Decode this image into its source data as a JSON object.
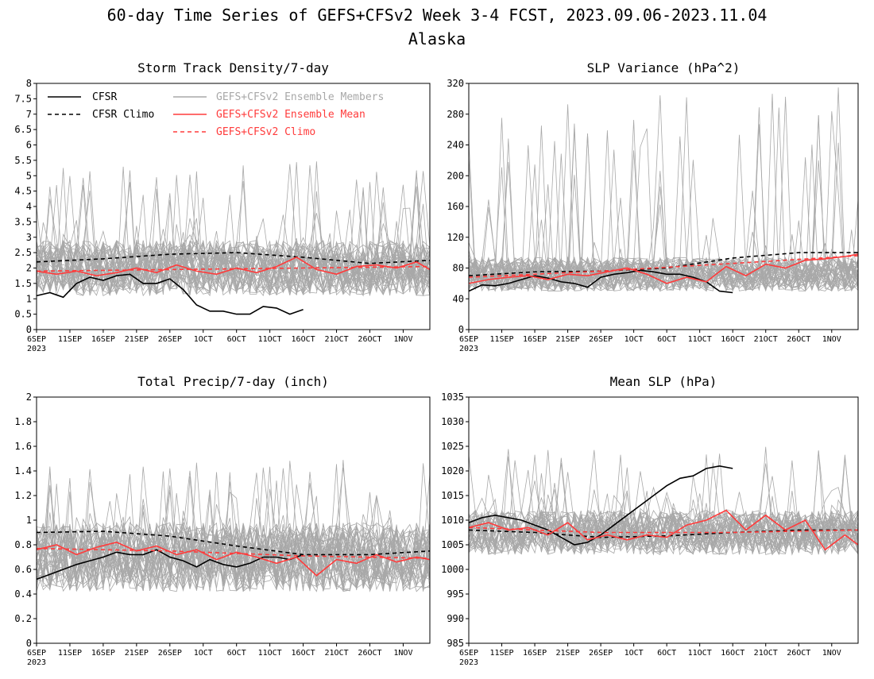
{
  "header": {
    "title": "60-day Time Series of GEFS+CFSv2 Week 3-4 FCST, 2023.09.06-2023.11.04",
    "subtitle": "Alaska"
  },
  "colors": {
    "cfsr": "#000000",
    "ensemble_member": "#a8a8a8",
    "ensemble_mean": "#ff3b3b",
    "axis": "#000000"
  },
  "legend": {
    "items": [
      {
        "label": "CFSR",
        "style": "solid",
        "color": "#000000"
      },
      {
        "label": "CFSR Climo",
        "style": "dashed",
        "color": "#000000"
      },
      {
        "label": "GEFS+CFSv2 Ensemble Members",
        "style": "solid",
        "color": "#a8a8a8"
      },
      {
        "label": "GEFS+CFSv2 Ensemble Mean",
        "style": "solid",
        "color": "#ff3b3b"
      },
      {
        "label": "GEFS+CFSv2 Climo",
        "style": "dashed",
        "color": "#ff3b3b"
      }
    ]
  },
  "x_axis": {
    "tick_labels": [
      "6SEP",
      "11SEP",
      "16SEP",
      "21SEP",
      "26SEP",
      "1OCT",
      "6OCT",
      "11OCT",
      "16OCT",
      "21OCT",
      "26OCT",
      "1NOV"
    ],
    "year_label": "2023"
  },
  "chart_data": [
    {
      "type": "line",
      "title": "Storm Track Density/7-day",
      "ylim": [
        0,
        8
      ],
      "yticks": [
        "0",
        "0.5",
        "1",
        "1.5",
        "2",
        "2.5",
        "3",
        "3.5",
        "4",
        "4.5",
        "5",
        "5.5",
        "6",
        "6.5",
        "7",
        "7.5",
        "8"
      ],
      "ensemble_members": {
        "count": 40,
        "center": 2.0,
        "spread": 0.9,
        "spike_max": 5.5
      },
      "series": [
        {
          "name": "CFSR",
          "style": "solid",
          "x": [
            0,
            2,
            4,
            6,
            8,
            10,
            12,
            14,
            16,
            18,
            20,
            22,
            24,
            26,
            28,
            30,
            32,
            34,
            36,
            38,
            40
          ],
          "values": [
            1.1,
            1.2,
            1.05,
            1.5,
            1.7,
            1.6,
            1.75,
            1.8,
            1.5,
            1.5,
            1.65,
            1.3,
            0.8,
            0.6,
            0.6,
            0.5,
            0.5,
            0.75,
            0.7,
            0.5,
            0.65
          ]
        },
        {
          "name": "CFSR Climo",
          "style": "dashed",
          "x": [
            0,
            10,
            20,
            30,
            40,
            50,
            59
          ],
          "values": [
            2.2,
            2.3,
            2.45,
            2.5,
            2.35,
            2.15,
            2.25
          ]
        },
        {
          "name": "GEFS+CFSv2 Ensemble Mean",
          "style": "solid",
          "x": [
            0,
            3,
            6,
            9,
            12,
            15,
            18,
            21,
            24,
            27,
            30,
            33,
            36,
            39,
            42,
            45,
            48,
            51,
            54,
            57,
            59
          ],
          "values": [
            1.9,
            1.8,
            1.9,
            1.75,
            1.85,
            2.0,
            1.85,
            2.1,
            1.9,
            1.8,
            2.0,
            1.85,
            2.05,
            2.35,
            1.95,
            1.8,
            2.05,
            2.1,
            2.0,
            2.2,
            1.95
          ]
        },
        {
          "name": "GEFS+CFSv2 Climo",
          "style": "dashed",
          "x": [
            0,
            20,
            40,
            59
          ],
          "values": [
            1.9,
            1.95,
            2.0,
            2.05
          ]
        }
      ]
    },
    {
      "type": "line",
      "title": "SLP Variance (hPa^2)",
      "ylim": [
        0,
        320
      ],
      "yticks": [
        "0",
        "40",
        "80",
        "120",
        "160",
        "200",
        "240",
        "280",
        "320"
      ],
      "ensemble_members": {
        "count": 40,
        "center": 72,
        "spread": 22,
        "spike_max": 320
      },
      "series": [
        {
          "name": "CFSR",
          "style": "solid",
          "x": [
            0,
            2,
            4,
            6,
            8,
            10,
            12,
            14,
            16,
            18,
            20,
            22,
            24,
            26,
            28,
            30,
            32,
            34,
            36,
            38,
            40
          ],
          "values": [
            50,
            58,
            57,
            60,
            65,
            70,
            67,
            62,
            60,
            55,
            68,
            72,
            74,
            77,
            75,
            72,
            72,
            68,
            62,
            50,
            48
          ]
        },
        {
          "name": "CFSR Climo",
          "style": "dashed",
          "x": [
            0,
            10,
            20,
            30,
            40,
            50,
            59
          ],
          "values": [
            70,
            75,
            76,
            80,
            93,
            100,
            100
          ]
        },
        {
          "name": "GEFS+CFSv2 Ensemble Mean",
          "style": "solid",
          "x": [
            0,
            3,
            6,
            9,
            12,
            15,
            18,
            21,
            24,
            27,
            30,
            33,
            36,
            39,
            42,
            45,
            48,
            51,
            54,
            57,
            59
          ],
          "values": [
            60,
            65,
            68,
            70,
            65,
            72,
            70,
            75,
            80,
            72,
            60,
            68,
            62,
            82,
            70,
            85,
            80,
            90,
            92,
            95,
            98
          ]
        },
        {
          "name": "GEFS+CFSv2 Climo",
          "style": "dashed",
          "x": [
            0,
            20,
            40,
            59
          ],
          "values": [
            68,
            76,
            86,
            96
          ]
        }
      ]
    },
    {
      "type": "line",
      "title": "Total Precip/7-day (inch)",
      "ylim": [
        0,
        2
      ],
      "yticks": [
        "0",
        "0.2",
        "0.4",
        "0.6",
        "0.8",
        "1",
        "1.2",
        "1.4",
        "1.6",
        "1.8",
        "2"
      ],
      "ensemble_members": {
        "count": 40,
        "center": 0.7,
        "spread": 0.28,
        "spike_max": 1.5
      },
      "series": [
        {
          "name": "CFSR",
          "style": "solid",
          "x": [
            0,
            2,
            4,
            6,
            8,
            10,
            12,
            14,
            16,
            18,
            20,
            22,
            24,
            26,
            28,
            30,
            32,
            34,
            36,
            38,
            40
          ],
          "values": [
            0.52,
            0.56,
            0.6,
            0.64,
            0.67,
            0.7,
            0.74,
            0.72,
            0.72,
            0.76,
            0.7,
            0.67,
            0.62,
            0.68,
            0.64,
            0.62,
            0.65,
            0.7,
            0.7,
            0.68,
            0.72
          ]
        },
        {
          "name": "CFSR Climo",
          "style": "dashed",
          "x": [
            0,
            10,
            20,
            30,
            40,
            50,
            59
          ],
          "values": [
            0.9,
            0.91,
            0.87,
            0.79,
            0.72,
            0.72,
            0.75
          ]
        },
        {
          "name": "GEFS+CFSv2 Ensemble Mean",
          "style": "solid",
          "x": [
            0,
            3,
            6,
            9,
            12,
            15,
            18,
            21,
            24,
            27,
            30,
            33,
            36,
            39,
            42,
            45,
            48,
            51,
            54,
            57,
            59
          ],
          "values": [
            0.76,
            0.8,
            0.72,
            0.78,
            0.82,
            0.75,
            0.79,
            0.72,
            0.76,
            0.68,
            0.74,
            0.7,
            0.65,
            0.7,
            0.55,
            0.68,
            0.65,
            0.72,
            0.66,
            0.7,
            0.68
          ]
        },
        {
          "name": "GEFS+CFSv2 Climo",
          "style": "dashed",
          "x": [
            0,
            20,
            40,
            59
          ],
          "values": [
            0.77,
            0.75,
            0.71,
            0.69
          ]
        }
      ]
    },
    {
      "type": "line",
      "title": "Mean SLP (hPa)",
      "ylim": [
        985,
        1035
      ],
      "yticks": [
        "985",
        "990",
        "995",
        "1000",
        "1005",
        "1010",
        "1015",
        "1020",
        "1025",
        "1030",
        "1035"
      ],
      "ensemble_members": {
        "count": 40,
        "center": 1007.5,
        "spread": 4.5,
        "spike_max": 1025
      },
      "series": [
        {
          "name": "CFSR",
          "style": "solid",
          "x": [
            0,
            2,
            4,
            6,
            8,
            10,
            12,
            14,
            16,
            18,
            20,
            22,
            24,
            26,
            28,
            30,
            32,
            34,
            36,
            38,
            40
          ],
          "values": [
            1009.5,
            1010.5,
            1011,
            1010.5,
            1010,
            1009,
            1008,
            1006.5,
            1005,
            1005.5,
            1007,
            1009,
            1011,
            1013,
            1015,
            1017,
            1018.5,
            1019,
            1020.5,
            1021,
            1020.5
          ]
        },
        {
          "name": "CFSR Climo",
          "style": "dashed",
          "x": [
            0,
            10,
            20,
            30,
            40,
            50,
            59
          ],
          "values": [
            1008,
            1007.5,
            1006.5,
            1006.8,
            1007.5,
            1008,
            1008
          ]
        },
        {
          "name": "GEFS+CFSv2 Ensemble Mean",
          "style": "solid",
          "x": [
            0,
            3,
            6,
            9,
            12,
            15,
            18,
            21,
            24,
            27,
            30,
            33,
            36,
            39,
            42,
            45,
            48,
            51,
            54,
            57,
            59
          ],
          "values": [
            1008.5,
            1009.5,
            1008,
            1008.5,
            1007,
            1009.5,
            1006,
            1007,
            1006,
            1007,
            1006.5,
            1009,
            1010,
            1012,
            1008,
            1011,
            1008,
            1010,
            1004,
            1007,
            1005
          ]
        },
        {
          "name": "GEFS+CFSv2 Climo",
          "style": "dashed",
          "x": [
            0,
            20,
            40,
            59
          ],
          "values": [
            1008.5,
            1007.5,
            1007.5,
            1008
          ]
        }
      ]
    }
  ]
}
